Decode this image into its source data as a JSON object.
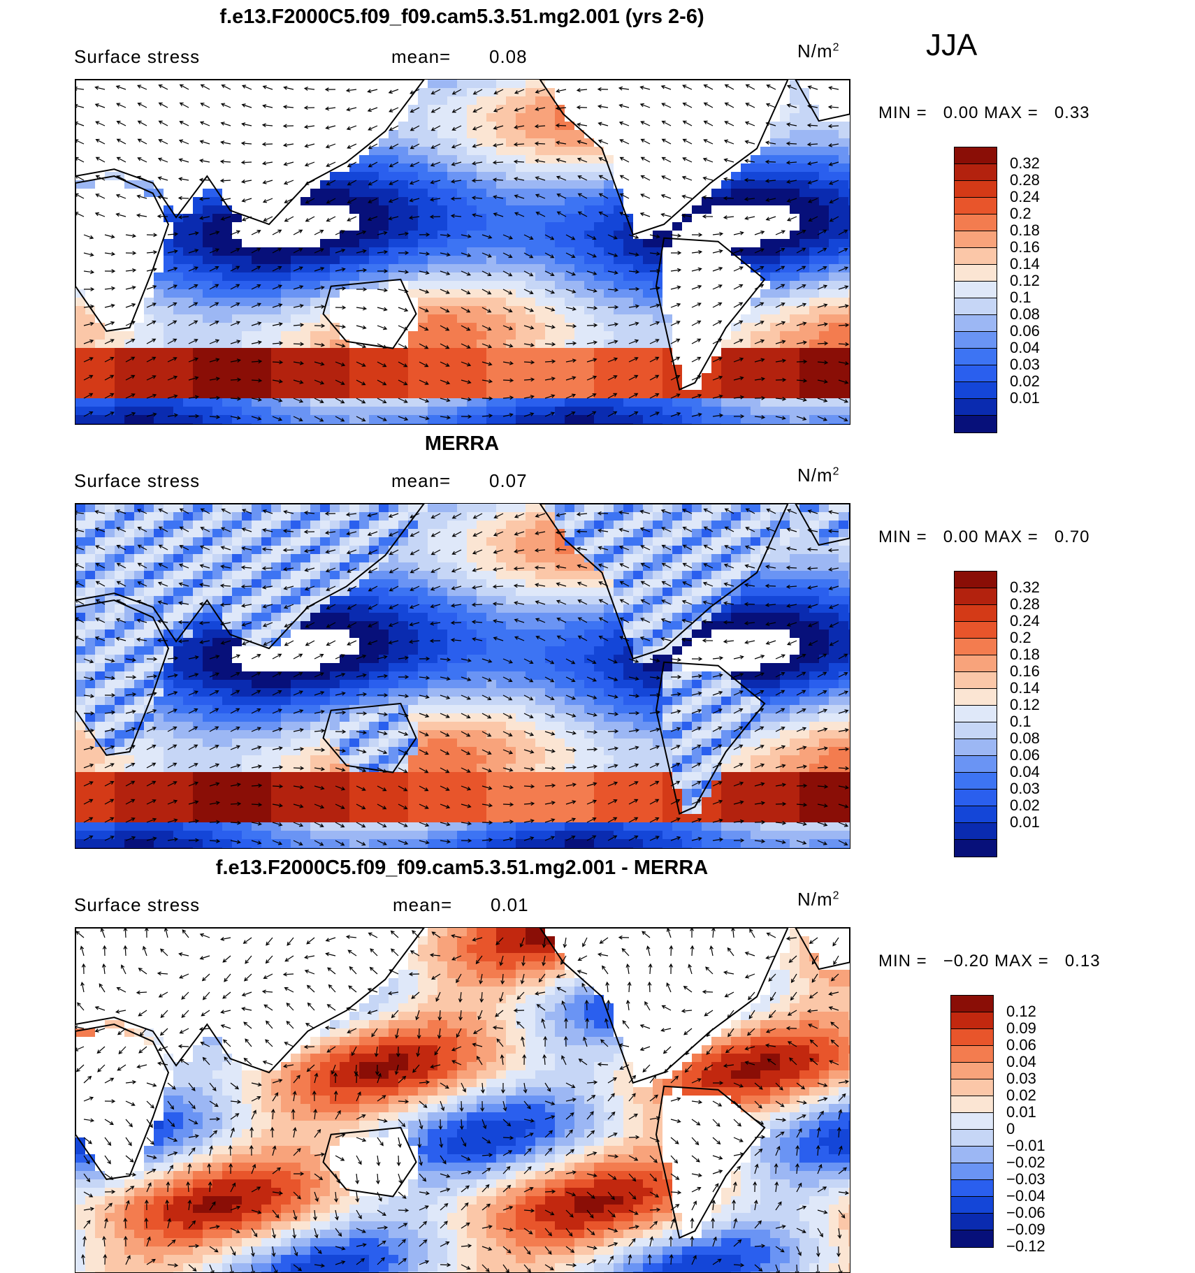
{
  "season": "JJA",
  "colormaps": {
    "abs": [
      "#07107a",
      "#0a2bb0",
      "#1446d8",
      "#2a5fee",
      "#3d74f3",
      "#6a94f4",
      "#9cb7f4",
      "#c6d6f6",
      "#dfe8f9",
      "#fbe5d3",
      "#fbc7a8",
      "#f8a37b",
      "#f37c4f",
      "#e8552b",
      "#d43a17",
      "#b3220e",
      "#8a0e06"
    ],
    "diff": [
      "#07107a",
      "#0a2bb0",
      "#1446d8",
      "#2a5fee",
      "#6a94f4",
      "#9cb7f4",
      "#c6d6f6",
      "#dfe8f9",
      "#fbe5d3",
      "#fbc7a8",
      "#f8a37b",
      "#f37c4f",
      "#e8552b",
      "#c2280f",
      "#8a0e06"
    ]
  },
  "panels": [
    {
      "title": "f.e13.F2000C5.f09_f09.cam5.3.51.mg2.001 (yrs 2-6)",
      "variable": "Surface stress",
      "mean_label": "mean=",
      "mean_value": "0.08",
      "units": "N/m",
      "units_sup": "2",
      "min_label": "MIN =",
      "min_value": "0.00",
      "max_label": "MAX =",
      "max_value": "0.33",
      "cmap": "abs",
      "colorbar_labels": [
        "0.32",
        "0.28",
        "0.24",
        "0.2",
        "0.18",
        "0.16",
        "0.14",
        "0.12",
        "0.1",
        "0.08",
        "0.06",
        "0.04",
        "0.03",
        "0.02",
        "0.01"
      ]
    },
    {
      "title": "MERRA",
      "variable": "Surface stress",
      "mean_label": "mean=",
      "mean_value": "0.07",
      "units": "N/m",
      "units_sup": "2",
      "min_label": "MIN =",
      "min_value": "0.00",
      "max_label": "MAX =",
      "max_value": "0.70",
      "cmap": "abs",
      "colorbar_labels": [
        "0.32",
        "0.28",
        "0.24",
        "0.2",
        "0.18",
        "0.16",
        "0.14",
        "0.12",
        "0.1",
        "0.08",
        "0.06",
        "0.04",
        "0.03",
        "0.02",
        "0.01"
      ]
    },
    {
      "title": "f.e13.F2000C5.f09_f09.cam5.3.51.mg2.001 - MERRA",
      "variable": "Surface stress",
      "mean_label": "mean=",
      "mean_value": "0.01",
      "units": "N/m",
      "units_sup": "2",
      "min_label": "MIN =",
      "min_value": "−0.20",
      "max_label": "MAX =",
      "max_value": "0.13",
      "cmap": "diff",
      "colorbar_labels": [
        "0.12",
        "0.09",
        "0.06",
        "0.04",
        "0.03",
        "0.02",
        "0.01",
        "0",
        "−0.01",
        "−0.02",
        "−0.03",
        "−0.04",
        "−0.06",
        "−0.09",
        "−0.12"
      ]
    }
  ]
}
